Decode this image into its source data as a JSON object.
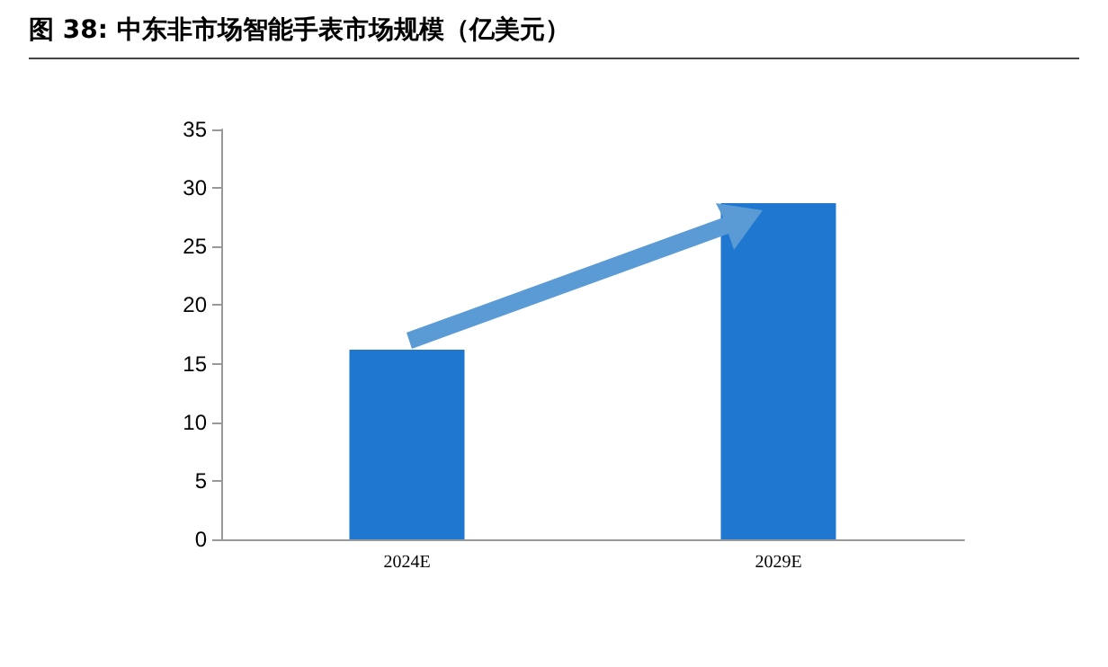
{
  "chart_data": {
    "type": "bar",
    "title": "图 38:  中东非市场智能手表市场规模（亿美元）",
    "categories": [
      "2024E",
      "2029E"
    ],
    "values": [
      16.2,
      28.7
    ],
    "color": "#1f77d0",
    "ylim": [
      0,
      35
    ],
    "yticks": [
      0,
      5,
      10,
      15,
      20,
      25,
      30,
      35
    ],
    "grid": false
  }
}
